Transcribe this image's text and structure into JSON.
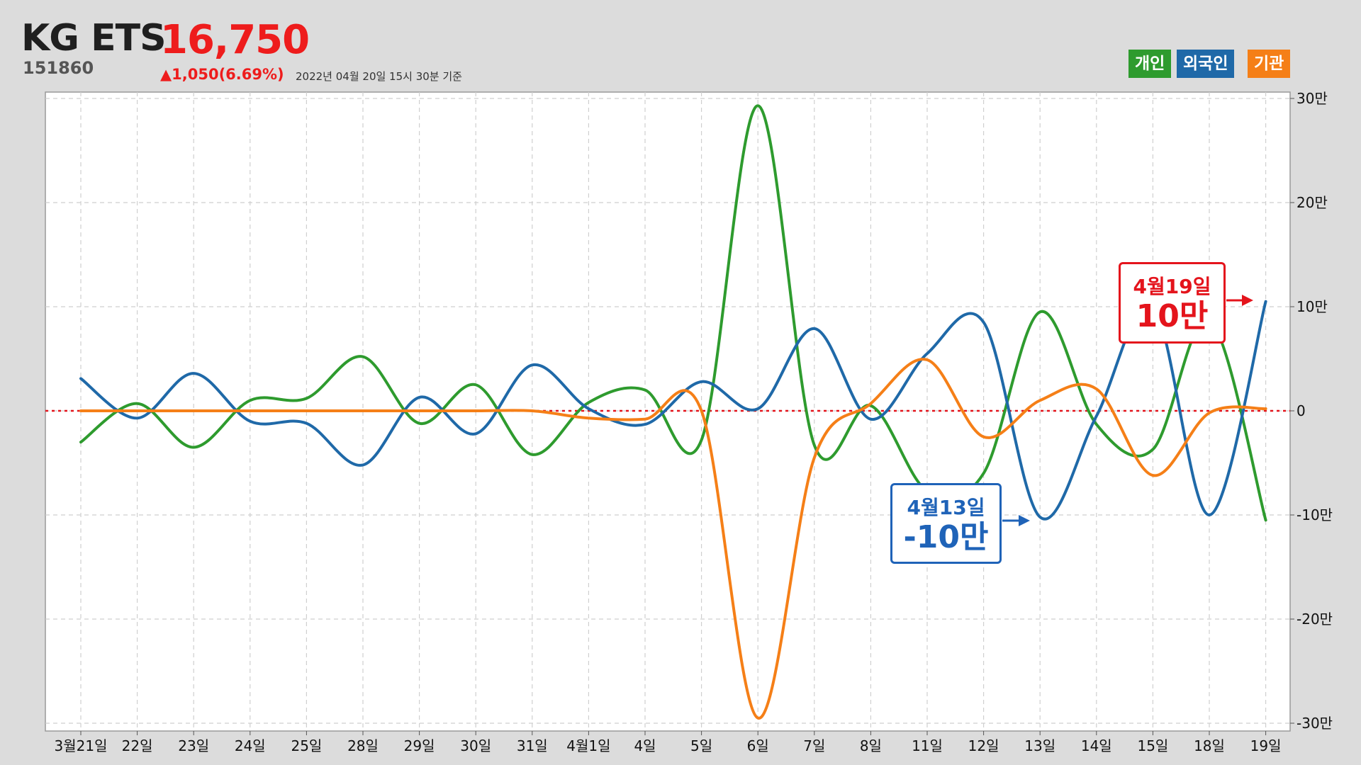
{
  "header": {
    "stock_name": "KG ETS",
    "price": "16,750",
    "code": "151860",
    "change": "▲1,050(6.69%)",
    "as_of": "2022년 04월 20일 15시 30분 기준"
  },
  "legend": {
    "individual": "개인",
    "foreign": "외국인",
    "institution": "기관"
  },
  "callouts": {
    "foreign_min": {
      "date": "4월13일",
      "value": "-10만"
    },
    "foreign_last": {
      "date": "4월19일",
      "value": "10만"
    }
  },
  "colors": {
    "individual": "#2e9b2e",
    "foreign": "#1f69a8",
    "institution": "#f57f17",
    "zero_line": "#e4141c",
    "callout_blue": "#1f63b8",
    "callout_red": "#e4141c"
  },
  "chart_data": {
    "type": "line",
    "categories": [
      "3월21일",
      "22일",
      "23일",
      "24일",
      "25일",
      "28일",
      "29일",
      "30일",
      "31일",
      "4월1일",
      "4일",
      "5일",
      "6일",
      "7일",
      "8일",
      "11일",
      "12일",
      "13일",
      "14일",
      "15일",
      "18일",
      "19일"
    ],
    "y_ticks": [
      "30만",
      "20만",
      "10만",
      "0",
      "-10만",
      "-20만",
      "-30만"
    ],
    "ylim": [
      -300000,
      300000
    ],
    "grid": true,
    "legend_position": "top-right",
    "series": [
      {
        "name": "개인",
        "values": [
          -30000,
          7000,
          -35000,
          10000,
          12000,
          52000,
          -12000,
          25000,
          -42000,
          8000,
          20000,
          -28000,
          293000,
          -33000,
          5000,
          -77000,
          -60000,
          95000,
          -13000,
          -37000,
          88000,
          -105000
        ]
      },
      {
        "name": "외국인",
        "values": [
          31000,
          -7000,
          36000,
          -10000,
          -12000,
          -52000,
          13000,
          -22000,
          44000,
          2000,
          -13000,
          28000,
          2000,
          79000,
          -8000,
          55000,
          85000,
          -102000,
          -5000,
          100000,
          -100000,
          105000
        ]
      },
      {
        "name": "기관",
        "values": [
          0,
          0,
          0,
          0,
          0,
          0,
          0,
          0,
          0,
          -7000,
          -8000,
          0,
          -295000,
          -45000,
          7000,
          49000,
          -25000,
          10000,
          21000,
          -62000,
          -2000,
          2000
        ]
      }
    ]
  }
}
